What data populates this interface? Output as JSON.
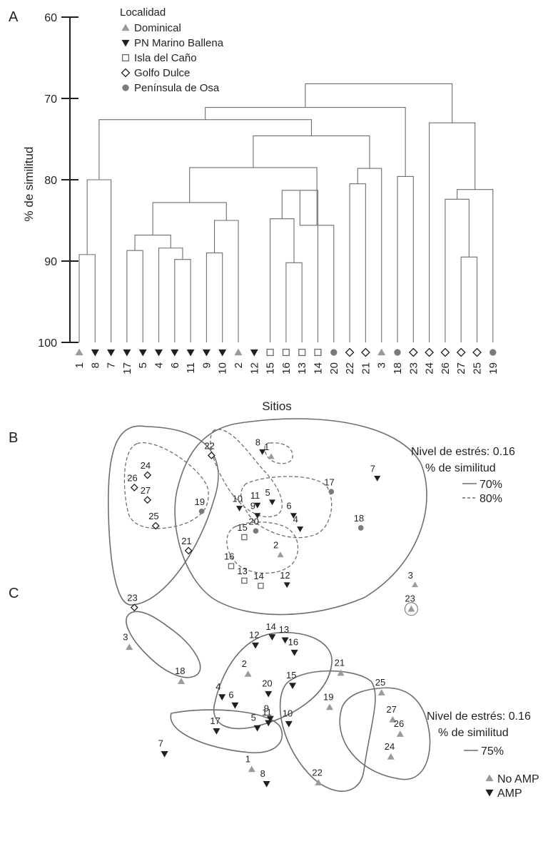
{
  "chart_data": [
    {
      "panel": "A",
      "type": "dendrogram",
      "ylabel": "% de similitud",
      "xlabel": "Sitios",
      "ylim": [
        60,
        100
      ],
      "y_ticks": [
        "60",
        "70",
        "80",
        "90",
        "100"
      ],
      "legend_title": "Localidad",
      "legend": [
        {
          "key": "dom",
          "label": "Dominical",
          "marker": "triangle-up",
          "color": "#9a9a9a"
        },
        {
          "key": "pmb",
          "label": "PN Marino Ballena",
          "marker": "triangle-down",
          "color": "#231f20"
        },
        {
          "key": "ica",
          "label": "Isla del Caño",
          "marker": "square-open",
          "color": "#6a6a6a"
        },
        {
          "key": "gdu",
          "label": "Golfo Dulce",
          "marker": "diamond-open",
          "color": "#231f20"
        },
        {
          "key": "pos",
          "label": "Península de Osa",
          "marker": "circle",
          "color": "#7a7a7a"
        }
      ],
      "leaves": [
        {
          "label": "1",
          "loc": "dom"
        },
        {
          "label": "8",
          "loc": "pmb"
        },
        {
          "label": "7",
          "loc": "pmb"
        },
        {
          "label": "17",
          "loc": "pmb"
        },
        {
          "label": "5",
          "loc": "pmb"
        },
        {
          "label": "4",
          "loc": "pmb"
        },
        {
          "label": "6",
          "loc": "pmb"
        },
        {
          "label": "11",
          "loc": "pmb"
        },
        {
          "label": "9",
          "loc": "pmb"
        },
        {
          "label": "10",
          "loc": "pmb"
        },
        {
          "label": "2",
          "loc": "dom"
        },
        {
          "label": "12",
          "loc": "pmb"
        },
        {
          "label": "15",
          "loc": "ica"
        },
        {
          "label": "16",
          "loc": "ica"
        },
        {
          "label": "13",
          "loc": "ica"
        },
        {
          "label": "14",
          "loc": "ica"
        },
        {
          "label": "20",
          "loc": "pos"
        },
        {
          "label": "22",
          "loc": "gdu"
        },
        {
          "label": "21",
          "loc": "gdu"
        },
        {
          "label": "3",
          "loc": "dom"
        },
        {
          "label": "18",
          "loc": "pos"
        },
        {
          "label": "23",
          "loc": "gdu"
        },
        {
          "label": "24",
          "loc": "gdu"
        },
        {
          "label": "26",
          "loc": "gdu"
        },
        {
          "label": "27",
          "loc": "gdu"
        },
        {
          "label": "25",
          "loc": "gdu"
        },
        {
          "label": "19",
          "loc": "pos"
        }
      ],
      "merges": [
        {
          "id": "m1",
          "children": [
            0,
            1
          ],
          "similarity": 89.2
        },
        {
          "id": "m2",
          "children": [
            "m1",
            2
          ],
          "similarity": 80.0
        },
        {
          "id": "m3",
          "children": [
            3,
            4
          ],
          "similarity": 88.7
        },
        {
          "id": "m4",
          "children": [
            6,
            7
          ],
          "similarity": 89.8
        },
        {
          "id": "m5",
          "children": [
            5,
            "m4"
          ],
          "similarity": 88.4
        },
        {
          "id": "m6",
          "children": [
            "m3",
            "m5"
          ],
          "similarity": 86.8
        },
        {
          "id": "m7",
          "children": [
            8,
            9
          ],
          "similarity": 89.0
        },
        {
          "id": "m8",
          "children": [
            "m7",
            10
          ],
          "similarity": 85.0
        },
        {
          "id": "m9",
          "children": [
            "m6",
            "m8"
          ],
          "similarity": 82.8
        },
        {
          "id": "m10",
          "children": [
            13,
            14
          ],
          "similarity": 90.2
        },
        {
          "id": "m11",
          "children": [
            12,
            "m10"
          ],
          "similarity": 84.8
        },
        {
          "id": "m12",
          "children": [
            "m11",
            15
          ],
          "similarity": 81.3
        },
        {
          "id": "m13",
          "children": [
            "m12",
            16
          ],
          "similarity": 85.6
        },
        {
          "id": "m14",
          "children": [
            "m9",
            "m13"
          ],
          "similarity": 78.5
        },
        {
          "id": "m15",
          "children": [
            17,
            18
          ],
          "similarity": 80.5
        },
        {
          "id": "m16",
          "children": [
            "m15",
            19
          ],
          "similarity": 78.6
        },
        {
          "id": "m17",
          "children": [
            "m14",
            "m16"
          ],
          "similarity": 74.6
        },
        {
          "id": "m18",
          "children": [
            20,
            21
          ],
          "similarity": 79.6
        },
        {
          "id": "m19",
          "children": [
            "m2",
            "m17"
          ],
          "similarity": 72.6
        },
        {
          "id": "m20",
          "children": [
            24,
            25
          ],
          "similarity": 89.5
        },
        {
          "id": "m21",
          "children": [
            23,
            "m20"
          ],
          "similarity": 82.4
        },
        {
          "id": "m22",
          "children": [
            26,
            27
          ],
          "similarity": 85.7
        },
        {
          "id": "m23",
          "children": [
            "m21",
            "m22"
          ],
          "similarity": 81.2
        },
        {
          "id": "m24",
          "children": [
            22,
            "m23"
          ],
          "similarity": 73.0
        },
        {
          "id": "m25",
          "children": [
            "m19",
            "m18"
          ],
          "similarity": 71.1
        },
        {
          "id": "m26",
          "children": [
            "m25",
            "m24"
          ],
          "similarity": 68.2
        }
      ]
    },
    {
      "panel": "B",
      "type": "scatter",
      "subtype": "nMDS",
      "stress_label": "Nivel de estrés: 0.16",
      "similarity_label": "% de similitud",
      "line_legend": [
        {
          "label": "70%",
          "style": "solid"
        },
        {
          "label": "80%",
          "style": "dashed"
        }
      ],
      "points": [
        {
          "label": "1",
          "loc": "dom",
          "x": 52.2,
          "y": 15.5
        },
        {
          "label": "8",
          "loc": "pmb",
          "x": 49.5,
          "y": 13.2
        },
        {
          "label": "7",
          "loc": "pmb",
          "x": 84.5,
          "y": 26.0
        },
        {
          "label": "22",
          "loc": "gdu",
          "x": 34.0,
          "y": 15.0
        },
        {
          "label": "24",
          "loc": "gdu",
          "x": 14.5,
          "y": 24.5
        },
        {
          "label": "26",
          "loc": "gdu",
          "x": 10.5,
          "y": 30.5
        },
        {
          "label": "27",
          "loc": "gdu",
          "x": 14.5,
          "y": 36.5
        },
        {
          "label": "25",
          "loc": "gdu",
          "x": 17.0,
          "y": 49.0
        },
        {
          "label": "21",
          "loc": "gdu",
          "x": 27.0,
          "y": 61.0
        },
        {
          "label": "23",
          "loc": "gdu",
          "x": 10.5,
          "y": 88.5
        },
        {
          "label": "19",
          "loc": "pos",
          "x": 31.0,
          "y": 42.0
        },
        {
          "label": "20",
          "loc": "pos",
          "x": 47.5,
          "y": 51.5
        },
        {
          "label": "17",
          "loc": "pos",
          "x": 70.5,
          "y": 32.5
        },
        {
          "label": "18",
          "loc": "pos",
          "x": 79.5,
          "y": 50.0
        },
        {
          "label": "3",
          "loc": "dom",
          "x": 96.0,
          "y": 77.5
        },
        {
          "label": "2",
          "loc": "dom",
          "x": 55.0,
          "y": 63.0
        },
        {
          "label": "10",
          "loc": "pmb",
          "x": 42.5,
          "y": 40.5
        },
        {
          "label": "11",
          "loc": "pmb",
          "x": 48.0,
          "y": 39.0
        },
        {
          "label": "9",
          "loc": "pmb",
          "x": 48.0,
          "y": 44.0
        },
        {
          "label": "5",
          "loc": "pmb",
          "x": 52.5,
          "y": 37.5
        },
        {
          "label": "6",
          "loc": "pmb",
          "x": 59.0,
          "y": 44.0
        },
        {
          "label": "4",
          "loc": "pmb",
          "x": 61.0,
          "y": 50.5
        },
        {
          "label": "12",
          "loc": "pmb",
          "x": 57.0,
          "y": 77.5
        },
        {
          "label": "15",
          "loc": "ica",
          "x": 44.0,
          "y": 54.5
        },
        {
          "label": "16",
          "loc": "ica",
          "x": 40.0,
          "y": 68.5
        },
        {
          "label": "13",
          "loc": "ica",
          "x": 44.0,
          "y": 75.5
        },
        {
          "label": "14",
          "loc": "ica",
          "x": 49.0,
          "y": 78.0
        }
      ]
    },
    {
      "panel": "C",
      "type": "scatter",
      "subtype": "nMDS",
      "stress_label": "Nivel de estrés: 0.16",
      "similarity_label": "% de similitud",
      "line_legend": [
        {
          "label": "75%",
          "style": "solid"
        }
      ],
      "marker_legend": [
        {
          "label": "No AMP",
          "marker": "triangle-up",
          "color": "#9a9a9a"
        },
        {
          "label": "AMP",
          "marker": "triangle-down",
          "color": "#231f20"
        }
      ],
      "points": [
        {
          "label": "3",
          "group": "noamp",
          "x": 6.0,
          "y": 21.5
        },
        {
          "label": "18",
          "group": "noamp",
          "x": 20.0,
          "y": 38.0
        },
        {
          "label": "7",
          "group": "amp",
          "x": 15.5,
          "y": 73.0
        },
        {
          "label": "1",
          "group": "noamp",
          "x": 39.0,
          "y": 80.5
        },
        {
          "label": "8",
          "group": "amp",
          "x": 43.0,
          "y": 87.5
        },
        {
          "label": "2",
          "group": "noamp",
          "x": 38.0,
          "y": 34.5
        },
        {
          "label": "4",
          "group": "amp",
          "x": 31.0,
          "y": 45.5
        },
        {
          "label": "6",
          "group": "amp",
          "x": 34.5,
          "y": 49.5
        },
        {
          "label": "17",
          "group": "amp",
          "x": 29.5,
          "y": 62.0
        },
        {
          "label": "5",
          "group": "amp",
          "x": 40.5,
          "y": 60.5
        },
        {
          "label": "12",
          "group": "amp",
          "x": 40.0,
          "y": 20.5
        },
        {
          "label": "14",
          "group": "amp",
          "x": 44.5,
          "y": 16.5
        },
        {
          "label": "13",
          "group": "amp",
          "x": 48.0,
          "y": 18.0
        },
        {
          "label": "16",
          "group": "amp",
          "x": 50.5,
          "y": 24.0
        },
        {
          "label": "20",
          "group": "amp",
          "x": 43.5,
          "y": 44.0
        },
        {
          "label": "15",
          "group": "amp",
          "x": 50.0,
          "y": 40.0
        },
        {
          "label": "11",
          "group": "amp",
          "x": 43.5,
          "y": 58.0
        },
        {
          "label": "9",
          "group": "amp",
          "x": 44.0,
          "y": 56.0
        },
        {
          "label": "10",
          "group": "amp",
          "x": 49.0,
          "y": 58.5
        },
        {
          "label": "21",
          "group": "noamp",
          "x": 63.0,
          "y": 34.0
        },
        {
          "label": "19",
          "group": "noamp",
          "x": 60.0,
          "y": 50.5
        },
        {
          "label": "22",
          "group": "noamp",
          "x": 57.0,
          "y": 87.0
        },
        {
          "label": "25",
          "group": "noamp",
          "x": 74.0,
          "y": 43.5
        },
        {
          "label": "27",
          "group": "noamp",
          "x": 77.0,
          "y": 56.5
        },
        {
          "label": "26",
          "group": "noamp",
          "x": 79.0,
          "y": 63.5
        },
        {
          "label": "24",
          "group": "noamp",
          "x": 76.5,
          "y": 74.5
        },
        {
          "label": "23",
          "group": "noamp",
          "x": 82.0,
          "y": 3.0
        }
      ]
    }
  ],
  "panel_letters": [
    "A",
    "B",
    "C"
  ]
}
